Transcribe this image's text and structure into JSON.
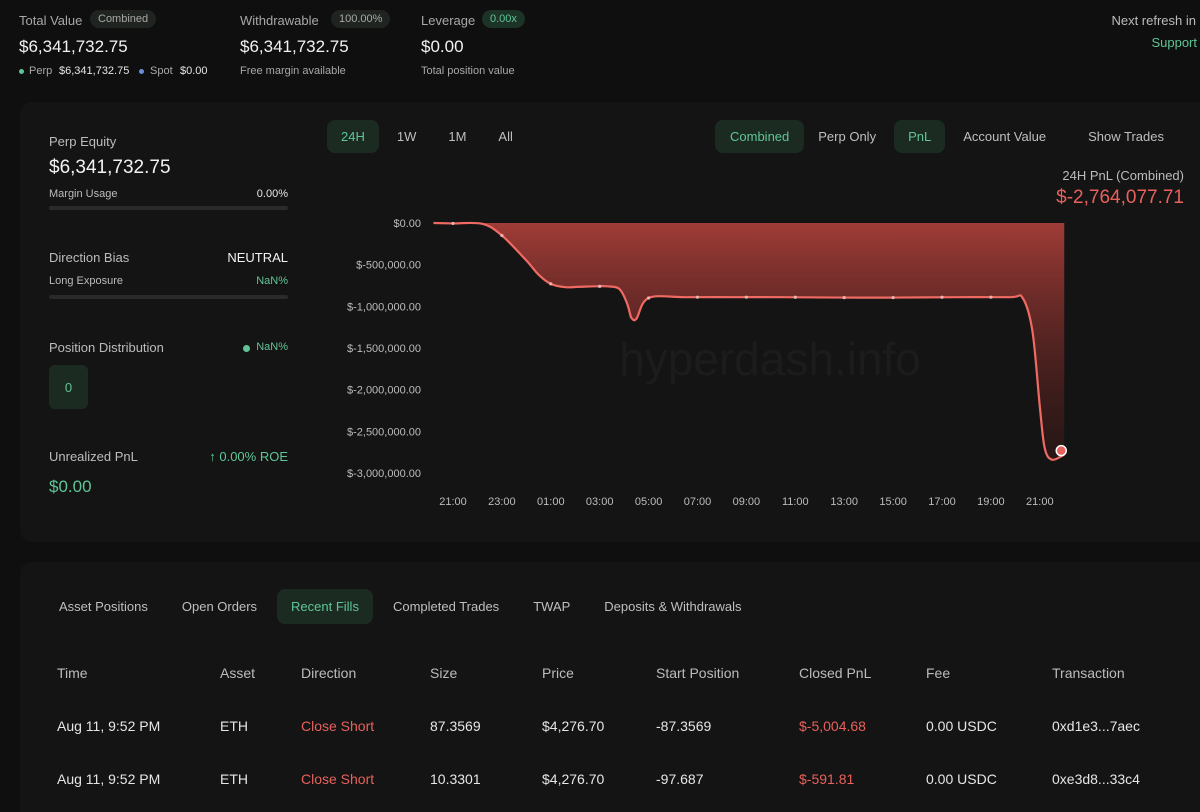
{
  "summary": {
    "total_value": {
      "label": "Total Value",
      "badge": "Combined",
      "value": "$6,341,732.75",
      "perp_label": "Perp",
      "perp_value": "$6,341,732.75",
      "spot_label": "Spot",
      "spot_value": "$0.00"
    },
    "withdrawable": {
      "label": "Withdrawable",
      "badge": "100.00%",
      "value": "$6,341,732.75",
      "sub": "Free margin available"
    },
    "leverage": {
      "label": "Leverage",
      "badge": "0.00x",
      "value": "$0.00",
      "sub": "Total position value"
    },
    "refresh": {
      "label": "Next refresh in",
      "support": "Support"
    }
  },
  "stats": {
    "perp_equity_label": "Perp Equity",
    "perp_equity_value": "$6,341,732.75",
    "margin_usage_label": "Margin Usage",
    "margin_usage_value": "0.00%",
    "direction_bias_label": "Direction Bias",
    "direction_bias_value": "NEUTRAL",
    "long_exposure_label": "Long Exposure",
    "long_exposure_value": "NaN%",
    "position_distribution_label": "Position Distribution",
    "position_distribution_value": "NaN%",
    "position_count": "0",
    "unrealized_pnl_label": "Unrealized PnL",
    "roe_value": "↑ 0.00% ROE",
    "unrealized_pnl_value": "$0.00"
  },
  "chart_controls": {
    "ranges": [
      "24H",
      "1W",
      "1M",
      "All"
    ],
    "active_range": "24H",
    "modes": [
      "Combined",
      "Perp Only"
    ],
    "active_mode": "Combined",
    "metrics": [
      "PnL",
      "Account Value"
    ],
    "active_metric": "PnL",
    "show_trades": "Show Trades",
    "pnl_caption": "24H PnL (Combined)",
    "pnl_value": "$-2,764,077.71",
    "watermark": "hyperdash.info"
  },
  "chart_data": {
    "type": "area",
    "title": "24H PnL (Combined)",
    "ylim": [
      -3000000,
      0
    ],
    "y_ticks": [
      0,
      -500000,
      -1000000,
      -1500000,
      -2000000,
      -2500000,
      -3000000
    ],
    "y_tick_labels": [
      "$0.00",
      "$-500,000.00",
      "$-1,000,000.00",
      "$-1,500,000.00",
      "$-2,000,000.00",
      "$-2,500,000.00",
      "$-3,000,000.00"
    ],
    "x_tick_labels": [
      "21:00",
      "23:00",
      "01:00",
      "03:00",
      "05:00",
      "07:00",
      "09:00",
      "11:00",
      "13:00",
      "15:00",
      "17:00",
      "19:00",
      "21:00"
    ],
    "x_hours": [
      0,
      2,
      4,
      6,
      8,
      10,
      12,
      14,
      16,
      18,
      20,
      22,
      24
    ],
    "series": [
      {
        "name": "PnL",
        "x": [
          -0.8,
          0,
          1.2,
          2.0,
          3.0,
          3.5,
          4.0,
          4.6,
          5.2,
          5.8,
          6.3,
          6.8,
          7.1,
          7.25,
          7.3,
          7.5,
          8.0,
          9.5,
          11.5,
          13.5,
          15.8,
          18.1,
          20.6,
          22.8,
          23.3,
          23.7,
          24.0,
          24.2,
          24.5,
          25.0
        ],
        "y": [
          0,
          -5000,
          -10000,
          -150000,
          -450000,
          -620000,
          -730000,
          -770000,
          -765000,
          -760000,
          -760000,
          -790000,
          -950000,
          -1100000,
          -1140000,
          -1150000,
          -900000,
          -890000,
          -890000,
          -890000,
          -895000,
          -895000,
          -890000,
          -890000,
          -900000,
          -1300000,
          -2200000,
          -2700000,
          -2840000,
          -2780000
        ],
        "markers": [
          0,
          2,
          4,
          6,
          8,
          10,
          12,
          14,
          16,
          18,
          20,
          22,
          24
        ]
      }
    ]
  },
  "tabs": {
    "items": [
      "Asset Positions",
      "Open Orders",
      "Recent Fills",
      "Completed Trades",
      "TWAP",
      "Deposits & Withdrawals"
    ],
    "active": "Recent Fills"
  },
  "fills_table": {
    "headers": [
      "Time",
      "Asset",
      "Direction",
      "Size",
      "Price",
      "Start Position",
      "Closed PnL",
      "Fee",
      "Transaction"
    ],
    "rows": [
      [
        "Aug 11, 9:52 PM",
        "ETH",
        "Close Short",
        "87.3569",
        "$4,276.70",
        "-87.3569",
        "$-5,004.68",
        "0.00 USDC",
        "0xd1e3...7aec"
      ],
      [
        "Aug 11, 9:52 PM",
        "ETH",
        "Close Short",
        "10.3301",
        "$4,276.70",
        "-97.687",
        "$-591.81",
        "0.00 USDC",
        "0xe3d8...33c4"
      ]
    ]
  },
  "colors": {
    "green": "#5fc596",
    "red": "#e8615c",
    "background": "#0f0f0f",
    "panel": "#141414"
  }
}
